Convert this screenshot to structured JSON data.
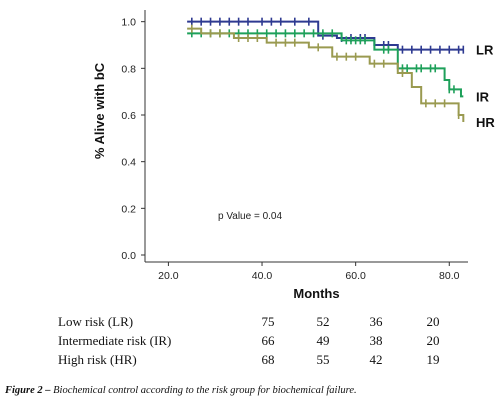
{
  "chart_data": {
    "type": "line",
    "subtype": "kaplan-meier step",
    "xlabel": "Months",
    "ylabel": "% Alive with bC",
    "xlim": [
      15,
      84
    ],
    "ylim": [
      -0.03,
      1.05
    ],
    "x_ticks": [
      "20.0",
      "40.0",
      "60.0",
      "80.0"
    ],
    "y_ticks": [
      "0.0",
      "0.2",
      "0.4",
      "0.6",
      "0.8",
      "1.0"
    ],
    "annotation": "p Value = 0.04",
    "series": [
      {
        "name": "LR",
        "color": "#2e3a91",
        "points": [
          [
            24,
            1.0
          ],
          [
            51,
            1.0
          ],
          [
            52,
            0.94
          ],
          [
            55,
            0.94
          ],
          [
            56,
            0.93
          ],
          [
            63,
            0.93
          ],
          [
            64,
            0.9
          ],
          [
            68,
            0.9
          ],
          [
            69,
            0.88
          ],
          [
            83,
            0.88
          ]
        ],
        "censor_x": [
          25,
          27,
          29,
          31,
          33,
          35,
          37,
          40,
          42,
          44,
          47,
          50,
          53,
          57,
          59,
          61,
          62,
          64,
          66,
          67,
          70,
          72,
          74,
          76,
          78,
          80,
          82,
          83
        ]
      },
      {
        "name": "IR",
        "color": "#1ea05a",
        "points": [
          [
            24,
            0.95
          ],
          [
            56,
            0.95
          ],
          [
            57,
            0.92
          ],
          [
            63,
            0.92
          ],
          [
            64,
            0.88
          ],
          [
            68,
            0.88
          ],
          [
            69,
            0.8
          ],
          [
            78,
            0.8
          ],
          [
            79,
            0.75
          ],
          [
            80,
            0.71
          ],
          [
            82,
            0.71
          ],
          [
            82.5,
            0.68
          ],
          [
            83,
            0.68
          ]
        ],
        "censor_x": [
          25,
          27,
          29,
          31,
          33,
          35,
          37,
          39,
          41,
          43,
          45,
          47,
          49,
          51,
          53,
          55,
          58,
          59,
          60,
          61,
          62,
          66,
          67,
          70,
          71,
          73,
          74,
          76,
          77,
          80,
          81
        ]
      },
      {
        "name": "HR",
        "color": "#9a9a50",
        "points": [
          [
            24,
            0.97
          ],
          [
            26,
            0.97
          ],
          [
            27,
            0.95
          ],
          [
            33,
            0.95
          ],
          [
            34,
            0.93
          ],
          [
            40,
            0.93
          ],
          [
            41,
            0.91
          ],
          [
            49,
            0.91
          ],
          [
            50,
            0.89
          ],
          [
            54,
            0.89
          ],
          [
            55,
            0.85
          ],
          [
            62,
            0.85
          ],
          [
            63,
            0.82
          ],
          [
            68,
            0.82
          ],
          [
            69,
            0.78
          ],
          [
            71,
            0.78
          ],
          [
            72,
            0.72
          ],
          [
            73,
            0.72
          ],
          [
            74,
            0.65
          ],
          [
            81,
            0.65
          ],
          [
            82,
            0.6
          ],
          [
            83,
            0.57
          ]
        ],
        "censor_x": [
          25,
          29,
          31,
          35,
          37,
          39,
          43,
          45,
          47,
          52,
          56,
          58,
          60,
          64,
          66,
          70,
          75,
          77,
          79,
          82
        ]
      }
    ]
  },
  "risk_table": {
    "rows": [
      {
        "label": "Low risk (LR)",
        "values": [
          "75",
          "52",
          "36",
          "20"
        ]
      },
      {
        "label": "Intermediate risk (IR)",
        "values": [
          "66",
          "49",
          "38",
          "20"
        ]
      },
      {
        "label": "High risk (HR)",
        "values": [
          "68",
          "55",
          "42",
          "19"
        ]
      }
    ]
  },
  "caption": {
    "prefix": "Figure 2 –",
    "text": " Biochemical control according to the risk group for biochemical failure."
  }
}
